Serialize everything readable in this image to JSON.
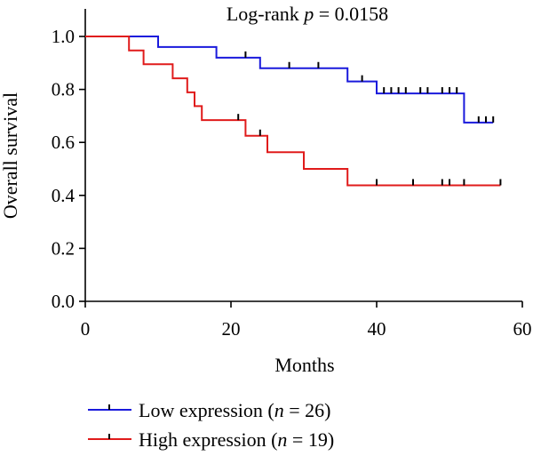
{
  "chart_data": {
    "type": "line",
    "title_prefix": "Log-rank ",
    "title_p": "p",
    "title_suffix": " = 0.0158",
    "xlabel": "Months",
    "ylabel": "Overall survival",
    "xlim": [
      0,
      60
    ],
    "ylim": [
      0,
      1.0
    ],
    "x_ticks": [
      0,
      20,
      40,
      60
    ],
    "y_ticks": [
      0.0,
      0.2,
      0.4,
      0.6,
      0.8,
      1.0
    ],
    "x_tick_labels": [
      "0",
      "20",
      "40",
      "60"
    ],
    "y_tick_labels": [
      "0.0",
      "0.2",
      "0.4",
      "0.6",
      "0.8",
      "1.0"
    ],
    "legend_position": "bottom",
    "series": [
      {
        "name_prefix": "Low expression (",
        "name_n": "n",
        "name_suffix": " = 26)",
        "color": "#1a1adc",
        "steps": [
          [
            0,
            1.0
          ],
          [
            10,
            0.96
          ],
          [
            18,
            0.92
          ],
          [
            24,
            0.88
          ],
          [
            36,
            0.83
          ],
          [
            40,
            0.785
          ],
          [
            52,
            0.675
          ],
          [
            56,
            0.675
          ]
        ],
        "censored": [
          [
            22,
            0.92
          ],
          [
            28,
            0.88
          ],
          [
            32,
            0.88
          ],
          [
            38,
            0.83
          ],
          [
            41,
            0.785
          ],
          [
            42,
            0.785
          ],
          [
            43,
            0.785
          ],
          [
            44,
            0.785
          ],
          [
            46,
            0.785
          ],
          [
            47,
            0.785
          ],
          [
            49,
            0.785
          ],
          [
            50,
            0.785
          ],
          [
            51,
            0.785
          ],
          [
            54,
            0.675
          ],
          [
            55,
            0.675
          ],
          [
            56,
            0.675
          ]
        ]
      },
      {
        "name_prefix": "High expression (",
        "name_n": "n",
        "name_suffix": " = 19)",
        "color": "#e01b1b",
        "steps": [
          [
            0,
            1.0
          ],
          [
            6,
            0.947
          ],
          [
            8,
            0.895
          ],
          [
            12,
            0.842
          ],
          [
            14,
            0.789
          ],
          [
            15,
            0.737
          ],
          [
            16,
            0.684
          ],
          [
            22,
            0.625
          ],
          [
            25,
            0.563
          ],
          [
            30,
            0.5
          ],
          [
            36,
            0.438
          ],
          [
            57,
            0.438
          ]
        ],
        "censored": [
          [
            21,
            0.684
          ],
          [
            24,
            0.625
          ],
          [
            40,
            0.438
          ],
          [
            45,
            0.438
          ],
          [
            49,
            0.438
          ],
          [
            50,
            0.438
          ],
          [
            52,
            0.438
          ],
          [
            57,
            0.438
          ]
        ]
      }
    ]
  }
}
